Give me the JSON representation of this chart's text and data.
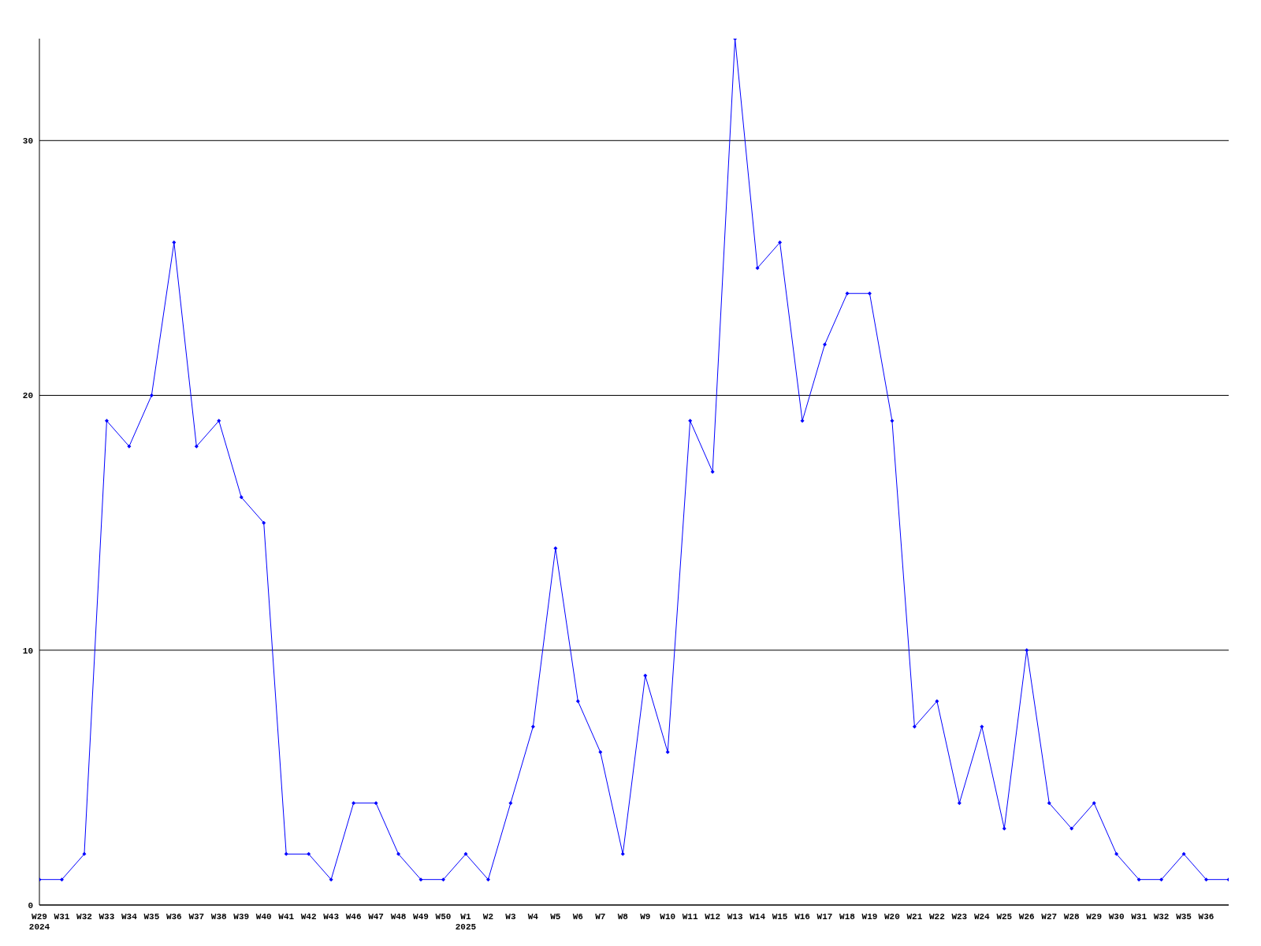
{
  "chart_data": {
    "type": "line",
    "categories": [
      "W29\n2024",
      "W31",
      "W32",
      "W33",
      "W34",
      "W35",
      "W36",
      "W37",
      "W38",
      "W39",
      "W40",
      "W41",
      "W42",
      "W43",
      "W46",
      "W47",
      "W48",
      "W49",
      "W50",
      "W1\n2025",
      "W2",
      "W3",
      "W4",
      "W5",
      "W6",
      "W7",
      "W8",
      "W9",
      "W10",
      "W11",
      "W12",
      "W13",
      "W14",
      "W15",
      "W16",
      "W17",
      "W18",
      "W19",
      "W20",
      "W21",
      "W22",
      "W23",
      "W24",
      "W25",
      "W26",
      "W27",
      "W28",
      "W29",
      "W30",
      "W31",
      "W32",
      "W35",
      "W36",
      null
    ],
    "series": [
      {
        "color": "#0000ff",
        "values": [
          1,
          1,
          2,
          19,
          18,
          20,
          26,
          18,
          19,
          16,
          15,
          2,
          2,
          1,
          4,
          4,
          2,
          1,
          1,
          2,
          1,
          4,
          7,
          14,
          8,
          6,
          2,
          9,
          6,
          19,
          17,
          34,
          25,
          26,
          19,
          22,
          24,
          24,
          19,
          7,
          8,
          4,
          7,
          3,
          10,
          4,
          3,
          4,
          2,
          1,
          1,
          2,
          1,
          1
        ]
      }
    ],
    "ylim": [
      0,
      34
    ],
    "yticks": [
      0,
      10,
      20,
      30
    ],
    "grid": "y",
    "marker": "diamond",
    "line_style": "solid"
  }
}
